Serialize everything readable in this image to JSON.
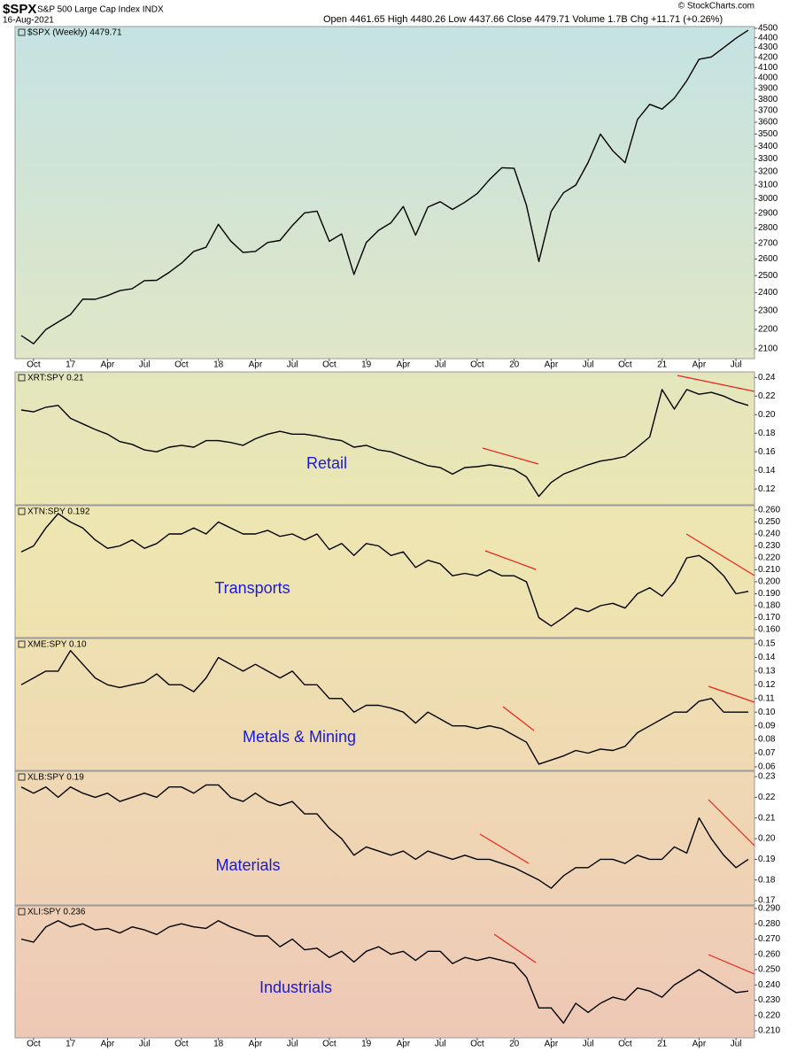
{
  "credit": "© StockCharts.com",
  "chart_data": [
    {
      "type": "line",
      "title": "$SPX",
      "subtitle": "S&P 500 Large Cap Index INDX",
      "date": "16-Aug-2021",
      "quote": "Open 4461.65 High 4480.26 Low 4437.66 Close 4479.71 Volume 1.7B Chg +11.71 (+0.26%)",
      "log_scale": true,
      "categories": [
        null,
        "Oct",
        null,
        null,
        "17",
        null,
        null,
        "Apr",
        null,
        null,
        "Jul",
        null,
        null,
        "Oct",
        null,
        null,
        "18",
        null,
        null,
        "Apr",
        null,
        null,
        "Jul",
        null,
        null,
        "Oct",
        null,
        null,
        "19",
        null,
        null,
        "Apr",
        null,
        null,
        "Jul",
        null,
        null,
        "Oct",
        null,
        null,
        "20",
        null,
        null,
        "Apr",
        null,
        null,
        "Jul",
        null,
        null,
        "Oct",
        null,
        null,
        "21",
        null,
        null,
        "Apr",
        null,
        null,
        "Jul",
        null
      ],
      "series": [
        {
          "name": "$SPX (Weekly) 4479.71",
          "color": "#000000",
          "values": [
            2168,
            2126,
            2199,
            2239,
            2279,
            2364,
            2363,
            2384,
            2412,
            2423,
            2470,
            2472,
            2519,
            2575,
            2648,
            2674,
            2824,
            2714,
            2641,
            2648,
            2705,
            2718,
            2816,
            2902,
            2914,
            2712,
            2760,
            2507,
            2704,
            2784,
            2834,
            2946,
            2752,
            2942,
            2980,
            2926,
            2977,
            3038,
            3141,
            3231,
            3226,
            2954,
            2585,
            2912,
            3044,
            3100,
            3271,
            3500,
            3363,
            3270,
            3622,
            3756,
            3714,
            3811,
            3973,
            4181,
            4204,
            4298,
            4395,
            4480
          ]
        }
      ],
      "ylim": [
        2052,
        4519
      ],
      "yticks": [
        2100,
        2200,
        2300,
        2400,
        2500,
        2600,
        2700,
        2800,
        2900,
        3000,
        3100,
        3200,
        3300,
        3400,
        3500,
        3600,
        3700,
        3800,
        3900,
        4000,
        4100,
        4200,
        4300,
        4400,
        4500
      ]
    },
    {
      "type": "line",
      "annotation": "Retail",
      "series": [
        {
          "name": "XRT:SPY 0.21",
          "color": "#000000",
          "values": [
            0.205,
            0.203,
            0.208,
            0.21,
            0.196,
            0.19,
            0.184,
            0.179,
            0.171,
            0.168,
            0.162,
            0.16,
            0.165,
            0.167,
            0.165,
            0.172,
            0.172,
            0.17,
            0.167,
            0.174,
            0.179,
            0.182,
            0.179,
            0.179,
            0.177,
            0.174,
            0.172,
            0.165,
            0.167,
            0.162,
            0.16,
            0.155,
            0.15,
            0.145,
            0.143,
            0.136,
            0.143,
            0.144,
            0.146,
            0.144,
            0.141,
            0.133,
            0.112,
            0.127,
            0.136,
            0.141,
            0.146,
            0.15,
            0.152,
            0.155,
            0.165,
            0.176,
            0.227,
            0.206,
            0.227,
            0.222,
            0.224,
            0.22,
            0.214,
            0.21
          ]
        }
      ],
      "ylim": [
        0.103,
        0.246
      ],
      "yticks": [
        0.12,
        0.14,
        0.16,
        0.18,
        {
          "value": 0.2,
          "label": "0.20"
        },
        0.22,
        0.24
      ]
    },
    {
      "type": "line",
      "annotation": "Transports",
      "series": [
        {
          "name": "XTN:SPY 0.192",
          "color": "#000000",
          "values": [
            0.225,
            0.23,
            0.245,
            0.257,
            0.25,
            0.245,
            0.235,
            0.228,
            0.23,
            0.235,
            0.228,
            0.232,
            0.24,
            0.24,
            0.245,
            0.24,
            0.25,
            0.245,
            0.24,
            0.24,
            0.243,
            0.238,
            0.24,
            0.235,
            0.24,
            0.227,
            0.232,
            0.222,
            0.232,
            0.23,
            0.222,
            0.225,
            0.212,
            0.218,
            0.215,
            0.205,
            0.207,
            0.205,
            0.21,
            0.205,
            0.205,
            0.2,
            0.17,
            0.163,
            0.17,
            0.178,
            0.175,
            0.18,
            0.182,
            0.178,
            0.19,
            0.195,
            0.188,
            0.2,
            0.22,
            0.222,
            0.215,
            0.205,
            0.19,
            0.192
          ]
        }
      ],
      "ylim": [
        0.1533,
        0.2637
      ],
      "yticks": [
        {
          "value": 0.16,
          "label": "0.160"
        },
        {
          "value": 0.17,
          "label": "0.170"
        },
        {
          "value": 0.18,
          "label": "0.180"
        },
        {
          "value": 0.19,
          "label": "0.190"
        },
        {
          "value": 0.2,
          "label": "0.200"
        },
        {
          "value": 0.21,
          "label": "0.210"
        },
        {
          "value": 0.22,
          "label": "0.220"
        },
        {
          "value": 0.23,
          "label": "0.230"
        },
        {
          "value": 0.24,
          "label": "0.240"
        },
        {
          "value": 0.25,
          "label": "0.250"
        },
        {
          "value": 0.26,
          "label": "0.260"
        }
      ]
    },
    {
      "type": "line",
      "annotation": "Metals & Mining",
      "series": [
        {
          "name": "XME:SPY 0.10",
          "color": "#000000",
          "values": [
            0.12,
            0.125,
            0.13,
            0.13,
            0.145,
            0.135,
            0.125,
            0.12,
            0.118,
            0.12,
            0.122,
            0.128,
            0.12,
            0.12,
            0.115,
            0.125,
            0.14,
            0.135,
            0.13,
            0.135,
            0.13,
            0.125,
            0.13,
            0.12,
            0.12,
            0.11,
            0.11,
            0.1,
            0.105,
            0.105,
            0.103,
            0.1,
            0.092,
            0.1,
            0.095,
            0.09,
            0.09,
            0.088,
            0.09,
            0.088,
            0.083,
            0.078,
            0.062,
            0.065,
            0.068,
            0.072,
            0.07,
            0.073,
            0.072,
            0.075,
            0.085,
            0.09,
            0.095,
            0.1,
            0.1,
            0.108,
            0.11,
            0.1,
            0.1,
            0.1
          ]
        }
      ],
      "ylim": [
        0.0574,
        0.1539
      ],
      "yticks": [
        {
          "value": 0.06,
          "label": "0.06"
        },
        {
          "value": 0.07,
          "label": "0.07"
        },
        {
          "value": 0.08,
          "label": "0.08"
        },
        {
          "value": 0.09,
          "label": "0.09"
        },
        {
          "value": 0.1,
          "label": "0.10"
        },
        0.11,
        0.12,
        0.13,
        0.14,
        0.15
      ]
    },
    {
      "type": "line",
      "annotation": "Materials",
      "series": [
        {
          "name": "XLB:SPY 0.19",
          "color": "#000000",
          "values": [
            0.225,
            0.222,
            0.225,
            0.22,
            0.225,
            0.222,
            0.22,
            0.222,
            0.218,
            0.22,
            0.222,
            0.22,
            0.225,
            0.225,
            0.222,
            0.226,
            0.226,
            0.22,
            0.218,
            0.222,
            0.218,
            0.216,
            0.218,
            0.212,
            0.212,
            0.205,
            0.2,
            0.192,
            0.196,
            0.194,
            0.192,
            0.194,
            0.19,
            0.194,
            0.192,
            0.19,
            0.192,
            0.19,
            0.19,
            0.188,
            0.186,
            0.183,
            0.18,
            0.176,
            0.182,
            0.186,
            0.186,
            0.19,
            0.19,
            0.188,
            0.192,
            0.19,
            0.19,
            0.196,
            0.193,
            0.21,
            0.2,
            0.192,
            0.186,
            0.19
          ]
        }
      ],
      "ylim": [
        0.1679,
        0.2326
      ],
      "yticks": [
        0.17,
        0.18,
        0.19,
        {
          "value": 0.2,
          "label": "0.20"
        },
        0.21,
        0.22,
        0.23
      ]
    },
    {
      "type": "line",
      "annotation": "Industrials",
      "categories": [
        null,
        "Oct",
        null,
        null,
        "17",
        null,
        null,
        "Apr",
        null,
        null,
        "Jul",
        null,
        null,
        "Oct",
        null,
        null,
        "18",
        null,
        null,
        "Apr",
        null,
        null,
        "Jul",
        null,
        null,
        "Oct",
        null,
        null,
        "19",
        null,
        null,
        "Apr",
        null,
        null,
        "Jul",
        null,
        null,
        "Oct",
        null,
        null,
        "20",
        null,
        null,
        "Apr",
        null,
        null,
        "Jul",
        null,
        null,
        "Oct",
        null,
        null,
        "21",
        null,
        null,
        "Apr",
        null,
        null,
        "Jul",
        null
      ],
      "series": [
        {
          "name": "XLI:SPY 0.236",
          "color": "#000000",
          "values": [
            0.27,
            0.268,
            0.278,
            0.282,
            0.278,
            0.28,
            0.276,
            0.277,
            0.274,
            0.278,
            0.276,
            0.273,
            0.278,
            0.28,
            0.278,
            0.277,
            0.282,
            0.278,
            0.275,
            0.272,
            0.272,
            0.265,
            0.27,
            0.263,
            0.264,
            0.258,
            0.262,
            0.255,
            0.262,
            0.265,
            0.26,
            0.262,
            0.256,
            0.262,
            0.262,
            0.254,
            0.258,
            0.256,
            0.258,
            0.256,
            0.254,
            0.245,
            0.225,
            0.225,
            0.215,
            0.228,
            0.222,
            0.228,
            0.232,
            0.23,
            0.238,
            0.236,
            0.232,
            0.24,
            0.245,
            0.25,
            0.245,
            0.24,
            0.235,
            0.236
          ]
        }
      ],
      "ylim": [
        0.2054,
        0.2917
      ],
      "yticks": [
        {
          "value": 0.21,
          "label": "0.210"
        },
        {
          "value": 0.22,
          "label": "0.220"
        },
        {
          "value": 0.23,
          "label": "0.230"
        },
        {
          "value": 0.24,
          "label": "0.240"
        },
        {
          "value": 0.25,
          "label": "0.250"
        },
        {
          "value": 0.26,
          "label": "0.260"
        },
        {
          "value": 0.27,
          "label": "0.270"
        },
        {
          "value": 0.28,
          "label": "0.280"
        },
        {
          "value": 0.29,
          "label": "0.290"
        }
      ]
    }
  ]
}
